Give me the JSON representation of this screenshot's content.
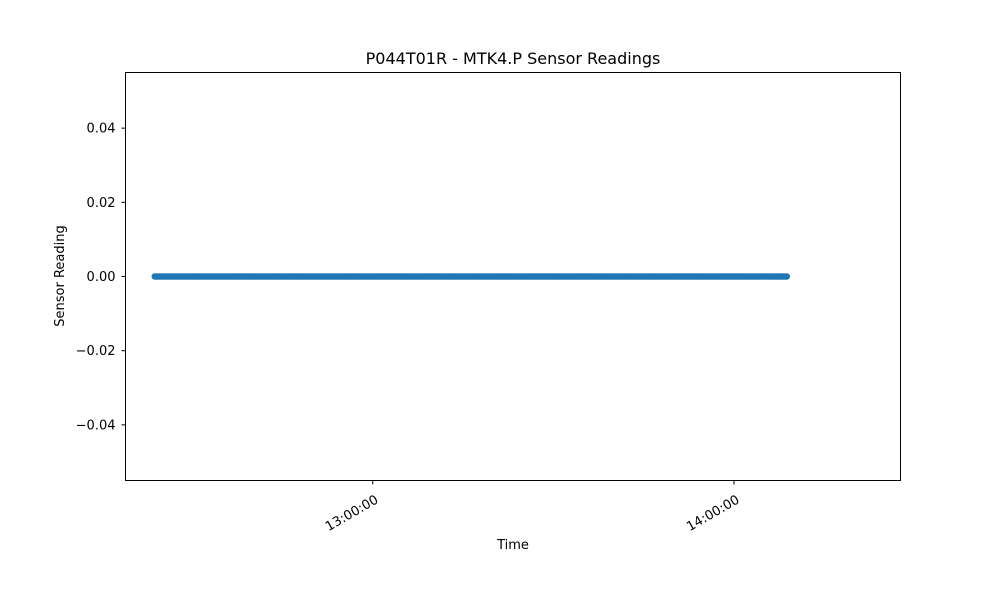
{
  "chart_data": {
    "type": "scatter",
    "title": "P044T01R - MTK4.P Sensor Readings",
    "xlabel": "Time",
    "ylabel": "Sensor Reading",
    "xlim": [
      "12:18:56",
      "14:27:40"
    ],
    "ylim": [
      -0.055,
      0.055
    ],
    "x_ticks": [
      "13:00:00",
      "14:00:00"
    ],
    "y_ticks": [
      0.04,
      0.02,
      0.0,
      -0.02,
      -0.04
    ],
    "y_tick_labels": [
      "0.04",
      "0.02",
      "0.00",
      "−0.02",
      "−0.04"
    ],
    "grid": false,
    "series": [
      {
        "color": "#1f77b4",
        "x_start": "12:23:47",
        "x_end": "14:08:56",
        "y": 0.0,
        "interval_seconds": 15
      }
    ]
  }
}
